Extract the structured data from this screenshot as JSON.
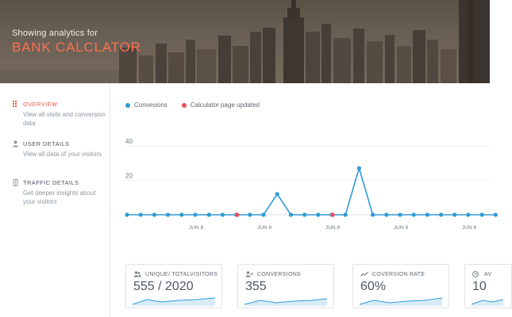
{
  "hero": {
    "caption": "Showing analytics for",
    "title": "BANK CALCLATOR"
  },
  "sidebar": {
    "items": [
      {
        "label": "OVERVIEW",
        "description": "View all visits and conversion data",
        "icon": "overview-grid-icon",
        "active": true
      },
      {
        "label": "USER DETAILS",
        "description": "View all data of your visitors",
        "icon": "user-icon",
        "active": false
      },
      {
        "label": "TRAFFIC DETAILS",
        "description": "Get deeper insights about your visitors",
        "icon": "traffic-icon",
        "active": false
      }
    ]
  },
  "legend": [
    {
      "label": "Convesions",
      "color": "#2e9bd6"
    },
    {
      "label": "Calculator page updated",
      "color": "#e8505b"
    }
  ],
  "chart_data": {
    "type": "line",
    "y_ticks": [
      "40",
      "20"
    ],
    "ylim": [
      0,
      40
    ],
    "x_tick_labels": [
      "JUN 8",
      "JUN 8",
      "JUN 8",
      "JUN 8",
      "JUN 8"
    ],
    "series": [
      {
        "name": "Convesions",
        "color": "#2e9bd6",
        "values": [
          0,
          0,
          0,
          0,
          0,
          0,
          0,
          0,
          0,
          0,
          0,
          12,
          0,
          0,
          0,
          0,
          0,
          27,
          0,
          0,
          0,
          0,
          0,
          0,
          0,
          0,
          0,
          0
        ]
      }
    ],
    "markers": [
      {
        "name": "Calculator page updated",
        "color": "#e8505b",
        "indices": [
          8,
          15
        ]
      }
    ],
    "grid": true
  },
  "cards": [
    {
      "label": "UNIQUE/ TOTALVISITORS",
      "value": "555 / 2020",
      "icon": "users-icon"
    },
    {
      "label": "CONVERSIONS",
      "value": "355",
      "icon": "user-check-icon"
    },
    {
      "label": "COVERSION RATE",
      "value": "60%",
      "icon": "trend-icon"
    },
    {
      "label": "AV",
      "value": "10",
      "icon": "clock-icon"
    }
  ],
  "colors": {
    "accent": "#f0584b",
    "line": "#2e9bd6",
    "event": "#e8505b"
  }
}
